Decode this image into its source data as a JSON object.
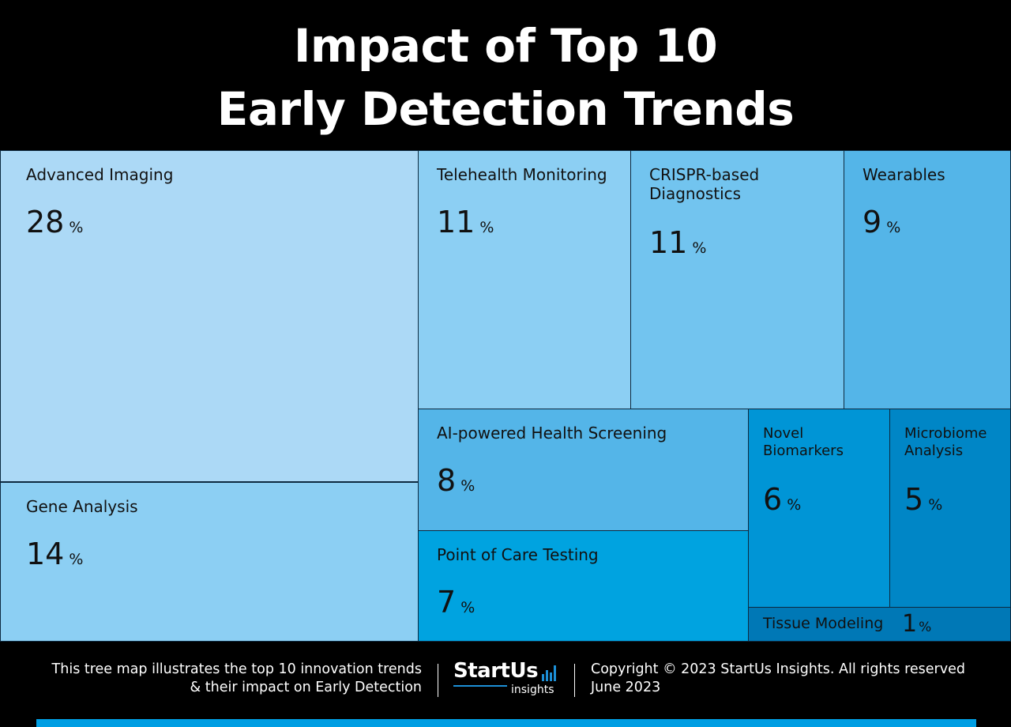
{
  "header": {
    "title_line1": "Impact of Top 10",
    "title_line2": "Early Detection Trends"
  },
  "chart_data": {
    "type": "treemap",
    "unit": "%",
    "items": [
      {
        "label": "Advanced Imaging",
        "value": 28,
        "color": "#acd9f6"
      },
      {
        "label": "Gene Analysis",
        "value": 14,
        "color": "#8ccff3"
      },
      {
        "label": "Telehealth Monitoring",
        "value": 11,
        "color": "#8ccff3"
      },
      {
        "label": "CRISPR-based Diagnostics",
        "value": 11,
        "color": "#72c4ef"
      },
      {
        "label": "Wearables",
        "value": 9,
        "color": "#54b5e8"
      },
      {
        "label": "AI-powered Health Screening",
        "value": 8,
        "color": "#54b5e8"
      },
      {
        "label": "Point of Care Testing",
        "value": 7,
        "color": "#00a3e0"
      },
      {
        "label": "Novel Biomarkers",
        "value": 6,
        "color": "#0095d6"
      },
      {
        "label": "Microbiome Analysis",
        "value": 5,
        "color": "#0086c6"
      },
      {
        "label": "Tissue Modeling",
        "value": 1,
        "color": "#0078b6"
      }
    ]
  },
  "footer": {
    "description_line1": "This tree map illustrates the top 10 innovation trends",
    "description_line2": "& their impact on Early Detection",
    "logo_main": "StartUs",
    "logo_sub": "insights",
    "copyright": "Copyright © 2023 StartUs Insights. All rights reserved",
    "date": "June 2023",
    "accent_color": "#009ee3"
  }
}
